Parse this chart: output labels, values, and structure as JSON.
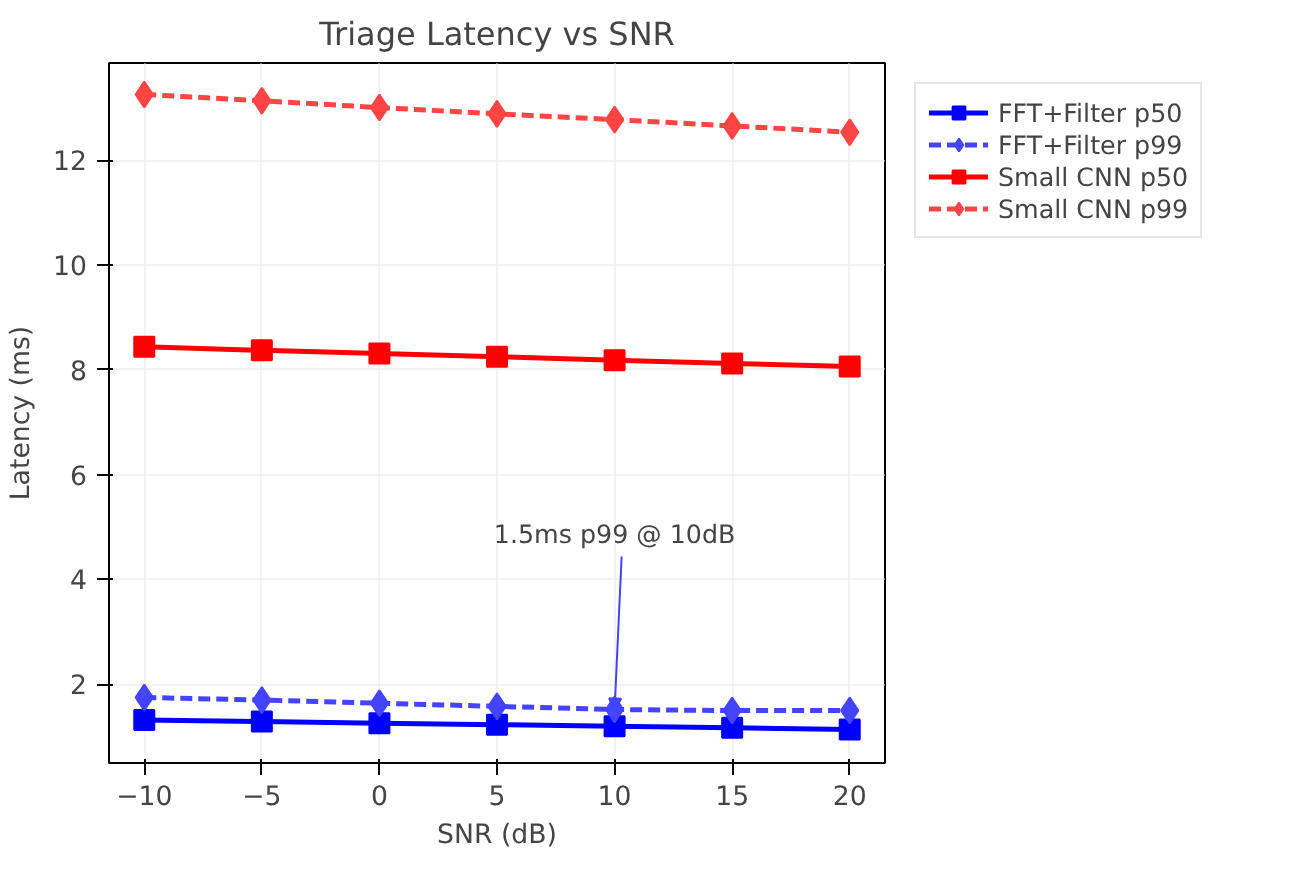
{
  "chart_data": {
    "type": "line",
    "title": "Triage Latency vs SNR",
    "xlabel": "SNR (dB)",
    "ylabel": "Latency (ms)",
    "x": [
      -10,
      -5,
      0,
      5,
      10,
      15,
      20
    ],
    "series": [
      {
        "name": "FFT+Filter p50",
        "color": "#0000ff",
        "values": [
          1.32,
          1.29,
          1.26,
          1.23,
          1.2,
          1.17,
          1.14
        ],
        "marker": "square",
        "line_style": "solid"
      },
      {
        "name": "FFT+Filter p99",
        "color": "#4444ff",
        "values": [
          1.75,
          1.7,
          1.64,
          1.58,
          1.52,
          1.5,
          1.5
        ],
        "marker": "diamond",
        "line_style": "dashed"
      },
      {
        "name": "Small CNN p50",
        "color": "#ff0000",
        "values": [
          8.44,
          8.37,
          8.31,
          8.25,
          8.18,
          8.12,
          8.06
        ],
        "marker": "square",
        "line_style": "solid"
      },
      {
        "name": "Small CNN p99",
        "color": "#ff4444",
        "values": [
          13.25,
          13.13,
          13.0,
          12.88,
          12.77,
          12.65,
          12.53
        ],
        "marker": "diamond",
        "line_style": "dashed"
      }
    ],
    "xlim": [
      -11.5,
      21.5
    ],
    "ylim": [
      0.5,
      13.85
    ],
    "xticks": [
      {
        "value": -10,
        "label": "−10"
      },
      {
        "value": -5,
        "label": "−5"
      },
      0,
      5,
      10,
      15,
      20
    ],
    "yticks": [
      2,
      4,
      6,
      8,
      10,
      12
    ],
    "grid": true,
    "legend": "top right",
    "annotations": [
      {
        "text": "1.5ms p99 @ 10dB",
        "x": 10,
        "y": 1.5
      }
    ]
  }
}
